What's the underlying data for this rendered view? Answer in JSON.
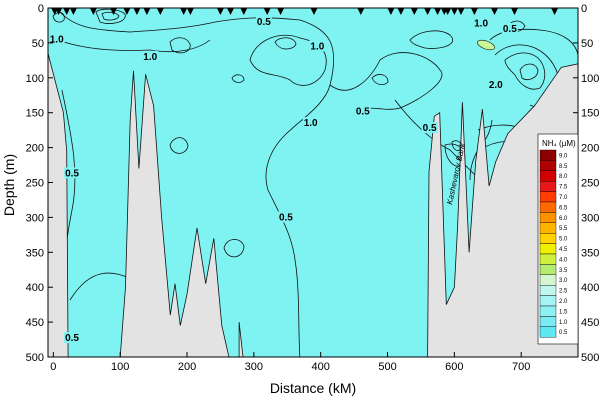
{
  "chart_data": {
    "type": "contour",
    "xlabel": "Distance (kM)",
    "ylabel": "Depth (m)",
    "xlim": [
      -8,
      785
    ],
    "ylim": [
      0,
      500
    ],
    "y_inverted": true,
    "x_ticks": [
      0,
      100,
      200,
      300,
      400,
      500,
      600,
      700
    ],
    "y_ticks": [
      0,
      50,
      100,
      150,
      200,
      250,
      300,
      350,
      400,
      450,
      500
    ],
    "station_positions_km": [
      2,
      8,
      20,
      30,
      60,
      90,
      110,
      125,
      140,
      160,
      195,
      205,
      250,
      265,
      285,
      320,
      340,
      390,
      460,
      505,
      520,
      540,
      560,
      575,
      585,
      590,
      600,
      610,
      630,
      660,
      690,
      750
    ],
    "feature_label": "Kashevarov Bank",
    "legend": {
      "title": "NH₄ (µM)",
      "levels": [
        "9.0",
        "8.5",
        "8.0",
        "7.5",
        "7.0",
        "6.5",
        "6.0",
        "5.5",
        "5.0",
        "4.5",
        "4.0",
        "3.5",
        "3.0",
        "2.5",
        "2.0",
        "1.5",
        "1.0",
        "0.5"
      ],
      "colors": [
        "#8b0000",
        "#b00000",
        "#d00000",
        "#e81818",
        "#ff3c00",
        "#ff6a00",
        "#ff9200",
        "#ffb400",
        "#ffd200",
        "#f0f000",
        "#d0f040",
        "#b4ec70",
        "#d4f7d0",
        "#bff6ee",
        "#a6f3f3",
        "#8ff0f3",
        "#78ecf2",
        "#5ee8f0"
      ]
    },
    "contour_labels": [
      {
        "text": "1.0",
        "x": 5,
        "y": 45
      },
      {
        "text": "1.0",
        "x": 145,
        "y": 70
      },
      {
        "text": "0.5",
        "x": 315,
        "y": 20
      },
      {
        "text": "1.0",
        "x": 395,
        "y": 55
      },
      {
        "text": "1.0",
        "x": 385,
        "y": 165
      },
      {
        "text": "0.5",
        "x": 463,
        "y": 148
      },
      {
        "text": "0.5",
        "x": 563,
        "y": 172
      },
      {
        "text": "1.0",
        "x": 640,
        "y": 22
      },
      {
        "text": "0.5",
        "x": 683,
        "y": 30
      },
      {
        "text": "2.0",
        "x": 662,
        "y": 110
      },
      {
        "text": "0.5",
        "x": 28,
        "y": 237
      },
      {
        "text": "0.5",
        "x": 348,
        "y": 300
      },
      {
        "text": "0.5",
        "x": 28,
        "y": 473
      }
    ],
    "bathymetry_depth_m": [
      [
        -8,
        65
      ],
      [
        15,
        150
      ],
      [
        20,
        205
      ],
      [
        22,
        500
      ],
      [
        100,
        500
      ],
      [
        108,
        400
      ],
      [
        115,
        160
      ],
      [
        120,
        90
      ],
      [
        128,
        230
      ],
      [
        138,
        95
      ],
      [
        150,
        140
      ],
      [
        162,
        300
      ],
      [
        175,
        440
      ],
      [
        182,
        395
      ],
      [
        190,
        455
      ],
      [
        200,
        410
      ],
      [
        215,
        315
      ],
      [
        228,
        395
      ],
      [
        240,
        330
      ],
      [
        252,
        455
      ],
      [
        265,
        510
      ],
      [
        278,
        450
      ],
      [
        285,
        510
      ],
      [
        560,
        500
      ],
      [
        562,
        235
      ],
      [
        570,
        155
      ],
      [
        578,
        150
      ],
      [
        588,
        425
      ],
      [
        600,
        400
      ],
      [
        605,
        310
      ],
      [
        612,
        135
      ],
      [
        622,
        350
      ],
      [
        632,
        220
      ],
      [
        642,
        145
      ],
      [
        652,
        255
      ],
      [
        662,
        220
      ],
      [
        680,
        180
      ],
      [
        720,
        140
      ],
      [
        760,
        85
      ],
      [
        785,
        80
      ]
    ]
  }
}
